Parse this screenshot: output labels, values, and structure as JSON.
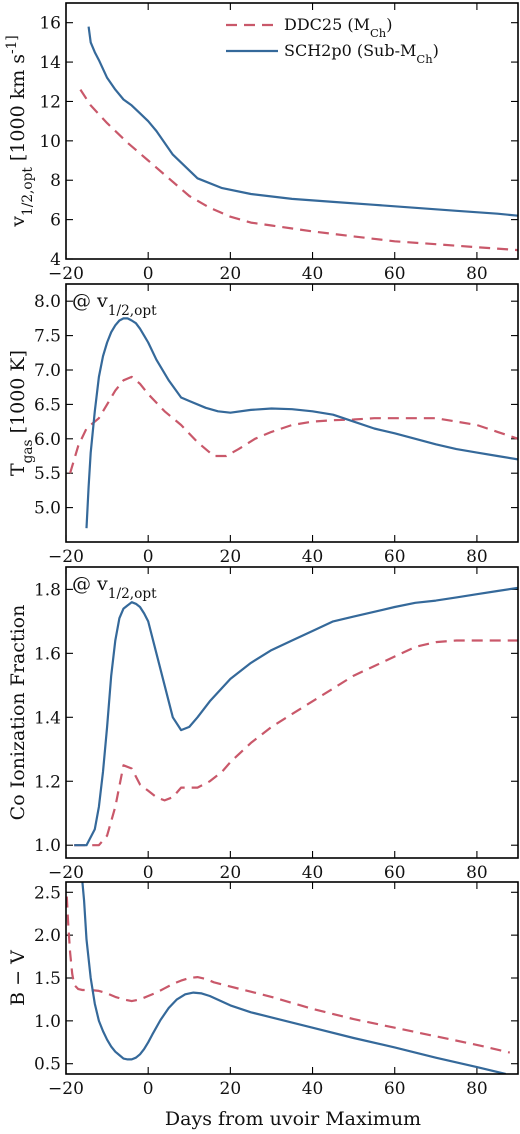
{
  "colors": {
    "ddc25": "#c9586a",
    "sch2p0": "#35699a"
  },
  "xlabel": "Days from uvoir Maximum",
  "legend": {
    "ddc25": "DDC25 (M_Ch)",
    "sch2p0": "SCH2p0 (Sub-M_Ch)"
  },
  "chart_data": [
    {
      "type": "line",
      "ylabel": "v_1/2,opt [1000 km s^-1]",
      "xlim": [
        -20,
        90
      ],
      "ylim": [
        4,
        17
      ],
      "xticks": [
        -20,
        0,
        20,
        40,
        60,
        80
      ],
      "yticks": [
        4,
        6,
        8,
        10,
        12,
        14,
        16
      ],
      "grid": false,
      "legend_position": "top-right",
      "series": [
        {
          "key": "ddc25",
          "name": "DDC25 (M_Ch)",
          "dash": true,
          "x": [
            -16.5,
            -14,
            -10,
            -5,
            0,
            5,
            10,
            15,
            20,
            25,
            30,
            40,
            50,
            60,
            70,
            80,
            90
          ],
          "y": [
            12.6,
            11.8,
            10.9,
            9.9,
            9.0,
            8.1,
            7.2,
            6.6,
            6.15,
            5.85,
            5.7,
            5.4,
            5.15,
            4.9,
            4.75,
            4.6,
            4.45
          ]
        },
        {
          "key": "sch2p0",
          "name": "SCH2p0 (Sub-M_Ch)",
          "dash": false,
          "x": [
            -14.5,
            -14,
            -13,
            -12,
            -10,
            -8,
            -6,
            -4,
            -2,
            0,
            2,
            6,
            12,
            18,
            25,
            35,
            45,
            55,
            65,
            75,
            85,
            90
          ],
          "y": [
            15.8,
            15.0,
            14.5,
            14.1,
            13.2,
            12.6,
            12.1,
            11.8,
            11.4,
            11.0,
            10.5,
            9.3,
            8.1,
            7.6,
            7.3,
            7.05,
            6.9,
            6.75,
            6.6,
            6.45,
            6.3,
            6.2
          ]
        }
      ]
    },
    {
      "type": "line",
      "ylabel": "T_gas [1000 K]",
      "annotation": "@ v_1/2,opt",
      "xlim": [
        -20,
        90
      ],
      "ylim": [
        4.5,
        8.25
      ],
      "xticks": [
        -20,
        0,
        20,
        40,
        60,
        80
      ],
      "yticks": [
        5.0,
        5.5,
        6.0,
        6.5,
        7.0,
        7.5,
        8.0
      ],
      "grid": false,
      "series": [
        {
          "key": "ddc25",
          "name": "DDC25 (M_Ch)",
          "dash": true,
          "x": [
            -19,
            -17,
            -15,
            -12,
            -10,
            -8,
            -6,
            -4,
            -2,
            0,
            4,
            8,
            12,
            16,
            19,
            22,
            26,
            30,
            35,
            40,
            45,
            50,
            55,
            60,
            65,
            70,
            75,
            80,
            85,
            90
          ],
          "y": [
            5.5,
            5.9,
            6.15,
            6.3,
            6.5,
            6.7,
            6.85,
            6.9,
            6.8,
            6.65,
            6.4,
            6.2,
            5.95,
            5.75,
            5.75,
            5.85,
            6.0,
            6.1,
            6.2,
            6.25,
            6.27,
            6.28,
            6.3,
            6.3,
            6.3,
            6.3,
            6.25,
            6.2,
            6.1,
            6.0
          ]
        },
        {
          "key": "sch2p0",
          "name": "SCH2p0 (Sub-M_Ch)",
          "dash": false,
          "x": [
            -15,
            -14.5,
            -14,
            -13,
            -12,
            -11,
            -10,
            -9,
            -8,
            -7,
            -6,
            -5,
            -4,
            -3,
            -2,
            -1,
            0,
            2,
            5,
            8,
            10,
            14,
            17,
            20,
            25,
            30,
            35,
            40,
            45,
            50,
            55,
            60,
            65,
            70,
            75,
            80,
            85,
            90
          ],
          "y": [
            4.7,
            5.3,
            5.8,
            6.4,
            6.9,
            7.2,
            7.4,
            7.55,
            7.65,
            7.72,
            7.75,
            7.75,
            7.72,
            7.68,
            7.6,
            7.5,
            7.4,
            7.15,
            6.85,
            6.6,
            6.55,
            6.45,
            6.4,
            6.38,
            6.42,
            6.44,
            6.43,
            6.4,
            6.35,
            6.25,
            6.15,
            6.08,
            6.0,
            5.92,
            5.85,
            5.8,
            5.75,
            5.7
          ]
        }
      ]
    },
    {
      "type": "line",
      "ylabel": "Co Ionization Fraction",
      "annotation": "@ v_1/2,opt",
      "xlim": [
        -20,
        90
      ],
      "ylim": [
        0.96,
        1.87
      ],
      "xticks": [
        -20,
        0,
        20,
        40,
        60,
        80
      ],
      "yticks": [
        1.0,
        1.2,
        1.4,
        1.6,
        1.8
      ],
      "grid": false,
      "series": [
        {
          "key": "ddc25",
          "name": "DDC25 (M_Ch)",
          "dash": true,
          "x": [
            -18,
            -14,
            -12,
            -10,
            -8,
            -6,
            -4,
            -2,
            0,
            2,
            4,
            6,
            8,
            10,
            12,
            15,
            18,
            20,
            25,
            30,
            35,
            40,
            45,
            50,
            55,
            60,
            65,
            70,
            75,
            80,
            85,
            90
          ],
          "y": [
            1.0,
            1.0,
            1.0,
            1.03,
            1.12,
            1.25,
            1.24,
            1.19,
            1.17,
            1.15,
            1.14,
            1.15,
            1.18,
            1.18,
            1.18,
            1.2,
            1.23,
            1.26,
            1.32,
            1.37,
            1.41,
            1.45,
            1.49,
            1.53,
            1.56,
            1.59,
            1.62,
            1.635,
            1.64,
            1.64,
            1.64,
            1.64
          ]
        },
        {
          "key": "sch2p0",
          "name": "SCH2p0 (Sub-M_Ch)",
          "dash": false,
          "x": [
            -18,
            -15,
            -13,
            -12,
            -11,
            -10,
            -9,
            -8,
            -7,
            -6,
            -5,
            -4,
            -3,
            -2,
            -1,
            0,
            2,
            4,
            6,
            8,
            10,
            12,
            15,
            20,
            25,
            30,
            35,
            40,
            45,
            50,
            55,
            60,
            65,
            70,
            75,
            80,
            85,
            90
          ],
          "y": [
            1.0,
            1.0,
            1.05,
            1.12,
            1.23,
            1.37,
            1.53,
            1.64,
            1.71,
            1.74,
            1.75,
            1.76,
            1.755,
            1.745,
            1.725,
            1.7,
            1.6,
            1.5,
            1.4,
            1.36,
            1.37,
            1.4,
            1.45,
            1.52,
            1.57,
            1.61,
            1.64,
            1.67,
            1.7,
            1.715,
            1.73,
            1.745,
            1.758,
            1.765,
            1.775,
            1.785,
            1.795,
            1.805
          ]
        }
      ]
    },
    {
      "type": "line",
      "ylabel": "B − V",
      "xlim": [
        -20,
        90
      ],
      "ylim": [
        0.38,
        2.62
      ],
      "xticks": [
        -20,
        0,
        20,
        40,
        60,
        80
      ],
      "yticks": [
        0.5,
        1.0,
        1.5,
        2.0,
        2.5
      ],
      "grid": false,
      "series": [
        {
          "key": "ddc25",
          "name": "DDC25 (M_Ch)",
          "dash": true,
          "x": [
            -19.8,
            -19.5,
            -19,
            -18.5,
            -18,
            -17,
            -16,
            -14,
            -12,
            -10,
            -8,
            -6,
            -4,
            -2,
            0,
            2,
            4,
            6,
            8,
            10,
            12,
            14,
            16,
            20,
            25,
            30,
            40,
            50,
            60,
            70,
            80,
            88
          ],
          "y": [
            2.45,
            2.15,
            1.8,
            1.55,
            1.42,
            1.37,
            1.36,
            1.36,
            1.35,
            1.32,
            1.28,
            1.25,
            1.23,
            1.25,
            1.29,
            1.33,
            1.38,
            1.43,
            1.47,
            1.5,
            1.51,
            1.49,
            1.45,
            1.4,
            1.34,
            1.28,
            1.14,
            1.02,
            0.92,
            0.82,
            0.72,
            0.63
          ]
        },
        {
          "key": "sch2p0",
          "name": "SCH2p0 (Sub-M_Ch)",
          "dash": false,
          "x": [
            -16,
            -15.6,
            -15,
            -14,
            -13,
            -12,
            -11,
            -10,
            -9,
            -8,
            -7,
            -6,
            -5,
            -4,
            -3,
            -2,
            -1,
            0,
            1,
            3,
            5,
            7,
            9,
            11,
            13,
            15,
            20,
            25,
            30,
            40,
            50,
            60,
            70,
            80,
            87
          ],
          "y": [
            2.62,
            2.4,
            1.95,
            1.5,
            1.2,
            1.0,
            0.88,
            0.78,
            0.7,
            0.64,
            0.6,
            0.56,
            0.55,
            0.55,
            0.57,
            0.61,
            0.67,
            0.75,
            0.84,
            1.01,
            1.15,
            1.25,
            1.31,
            1.33,
            1.32,
            1.29,
            1.18,
            1.1,
            1.04,
            0.92,
            0.8,
            0.69,
            0.57,
            0.46,
            0.38
          ]
        }
      ]
    }
  ]
}
